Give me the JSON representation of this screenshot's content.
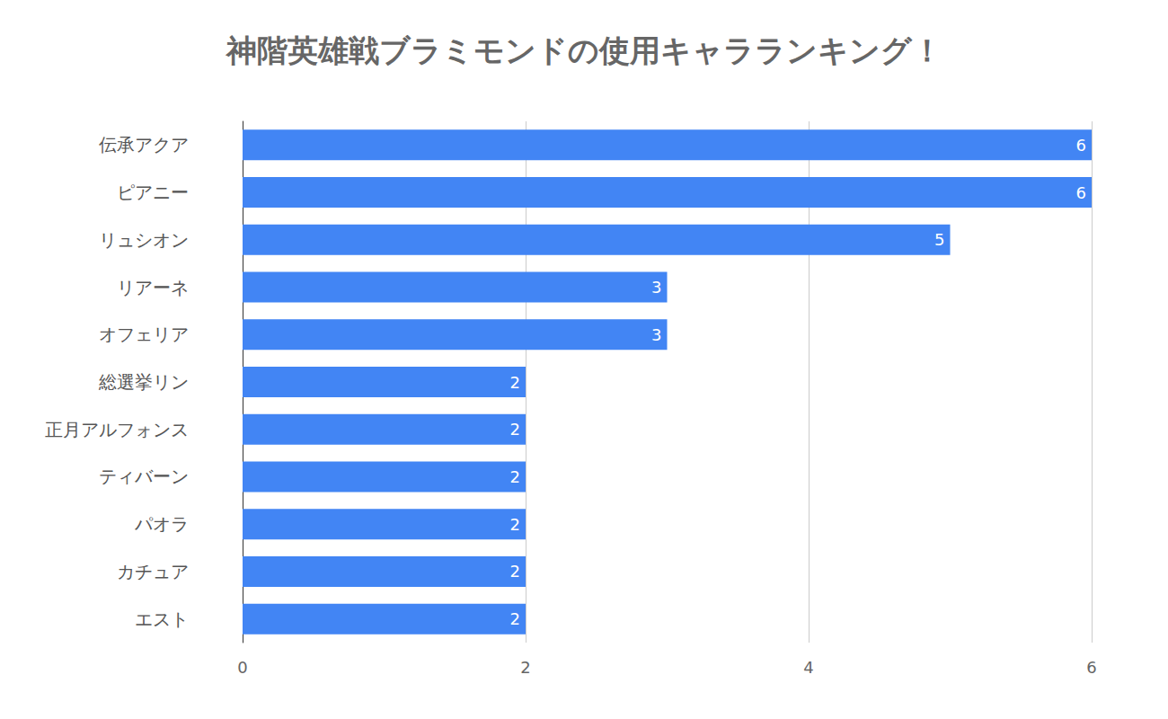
{
  "chart_data": {
    "type": "bar",
    "title": "神階英雄戦ブラミモンドの使用キャラランキング！",
    "orientation": "horizontal",
    "categories": [
      "伝承アクア",
      "ピアニー",
      "リュシオン",
      "リアーネ",
      "オフェリア",
      "総選挙リン",
      "正月アルフォンス",
      "ティバーン",
      "パオラ",
      "カチュア",
      "エスト"
    ],
    "values": [
      6,
      6,
      5,
      3,
      3,
      2,
      2,
      2,
      2,
      2,
      2
    ],
    "color": "#4285f4",
    "xlim": [
      0,
      6
    ],
    "xticks": [
      0,
      2,
      4,
      6
    ],
    "grid": true,
    "data_labels": true
  }
}
